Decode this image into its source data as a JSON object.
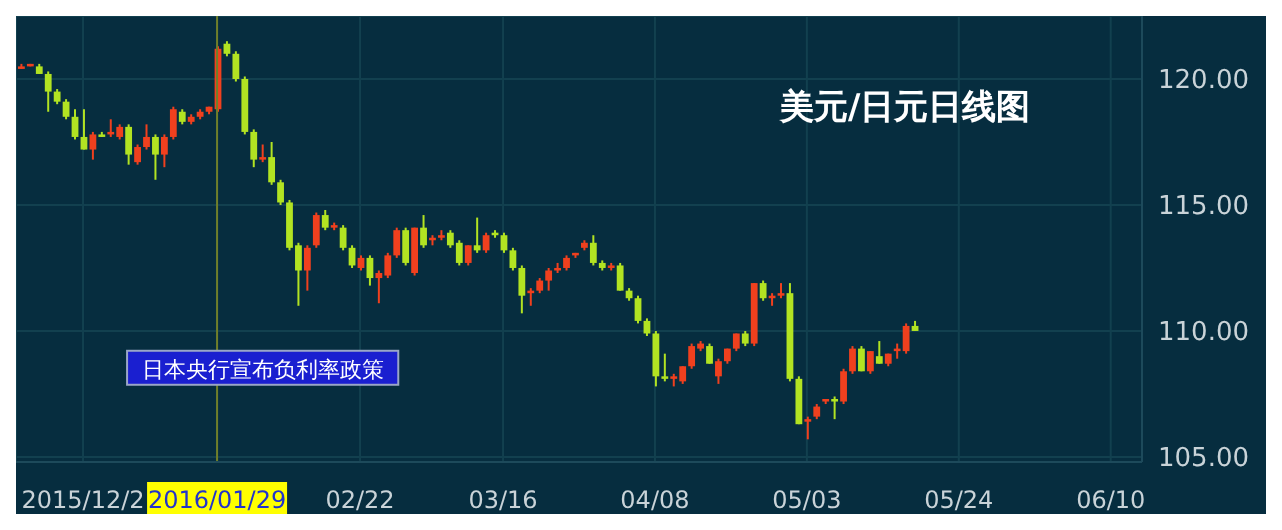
{
  "chart_data": {
    "type": "candlestick",
    "title": "美元/日元日线图",
    "categories": [
      null,
      null,
      null,
      null,
      null,
      null,
      null,
      "2015/12/2",
      null,
      null,
      null,
      null,
      null,
      null,
      null,
      null,
      null,
      null,
      null,
      null,
      null,
      null,
      "2016/01/29",
      null,
      null,
      null,
      null,
      null,
      null,
      null,
      null,
      null,
      null,
      null,
      null,
      null,
      null,
      null,
      "02/22",
      null,
      null,
      null,
      null,
      null,
      null,
      null,
      null,
      null,
      null,
      null,
      null,
      null,
      null,
      null,
      "03/16",
      null,
      null,
      null,
      null,
      null,
      null,
      null,
      null,
      null,
      null,
      null,
      null,
      null,
      null,
      null,
      null,
      "04/08",
      null,
      null,
      null,
      null,
      null,
      null,
      null,
      null,
      null,
      null,
      null,
      null,
      null,
      null,
      null,
      null,
      "05/03",
      null,
      null,
      null,
      null,
      null,
      null,
      null,
      null,
      null,
      null,
      null,
      null,
      null,
      null,
      null,
      null,
      "05/24",
      null,
      null,
      null,
      null,
      null,
      null,
      null,
      null,
      null,
      null,
      null,
      null,
      null,
      null,
      null,
      null,
      "06/10",
      null,
      null,
      null
    ],
    "ohlc": [
      [
        120.4,
        120.6,
        120.4,
        120.5
      ],
      [
        120.5,
        120.6,
        120.5,
        120.6
      ],
      [
        120.5,
        120.6,
        120.2,
        120.2
      ],
      [
        120.2,
        120.3,
        118.7,
        119.5
      ],
      [
        119.5,
        119.6,
        119.0,
        119.1
      ],
      [
        119.1,
        119.2,
        118.4,
        118.5
      ],
      [
        118.5,
        118.8,
        117.6,
        117.7
      ],
      [
        117.7,
        118.8,
        117.2,
        117.2
      ],
      [
        117.2,
        117.9,
        116.8,
        117.8
      ],
      [
        117.8,
        117.9,
        117.7,
        117.7
      ],
      [
        117.8,
        118.4,
        117.7,
        117.9
      ],
      [
        117.7,
        118.2,
        117.6,
        118.1
      ],
      [
        118.1,
        118.2,
        116.6,
        117.0
      ],
      [
        116.7,
        117.4,
        116.6,
        117.3
      ],
      [
        117.3,
        118.2,
        117.2,
        117.7
      ],
      [
        117.7,
        117.8,
        116.0,
        117.0
      ],
      [
        117.0,
        117.8,
        116.5,
        117.7
      ],
      [
        117.7,
        118.9,
        117.6,
        118.8
      ],
      [
        118.7,
        118.8,
        118.2,
        118.3
      ],
      [
        118.3,
        118.6,
        118.2,
        118.5
      ],
      [
        118.5,
        118.8,
        118.4,
        118.7
      ],
      [
        118.7,
        118.9,
        118.6,
        118.9
      ],
      [
        118.8,
        121.3,
        118.7,
        121.2
      ],
      [
        121.4,
        121.5,
        120.9,
        121.0
      ],
      [
        121.0,
        121.1,
        119.9,
        120.0
      ],
      [
        120.0,
        120.1,
        117.8,
        117.9
      ],
      [
        117.9,
        118.0,
        116.5,
        116.8
      ],
      [
        116.8,
        117.4,
        116.7,
        116.9
      ],
      [
        116.9,
        117.5,
        115.8,
        115.9
      ],
      [
        115.9,
        116.0,
        115.0,
        115.1
      ],
      [
        115.1,
        115.2,
        113.2,
        113.3
      ],
      [
        113.4,
        113.5,
        111.0,
        112.4
      ],
      [
        112.4,
        113.4,
        111.6,
        113.3
      ],
      [
        113.4,
        114.7,
        113.3,
        114.6
      ],
      [
        114.6,
        114.8,
        114.0,
        114.1
      ],
      [
        114.1,
        114.3,
        114.0,
        114.2
      ],
      [
        114.1,
        114.2,
        113.2,
        113.3
      ],
      [
        113.3,
        113.4,
        112.5,
        112.6
      ],
      [
        112.5,
        113.0,
        112.4,
        112.9
      ],
      [
        112.9,
        113.0,
        111.8,
        112.1
      ],
      [
        112.1,
        112.4,
        111.1,
        112.3
      ],
      [
        112.2,
        113.1,
        112.1,
        113.0
      ],
      [
        113.0,
        114.1,
        112.9,
        114.0
      ],
      [
        114.0,
        114.1,
        112.6,
        112.7
      ],
      [
        112.3,
        114.1,
        112.2,
        114.1
      ],
      [
        114.1,
        114.6,
        113.3,
        113.4
      ],
      [
        113.6,
        113.8,
        113.4,
        113.7
      ],
      [
        113.7,
        114.0,
        113.6,
        113.8
      ],
      [
        113.9,
        114.0,
        113.3,
        113.4
      ],
      [
        113.5,
        113.6,
        112.6,
        112.7
      ],
      [
        112.7,
        113.4,
        112.6,
        113.4
      ],
      [
        113.4,
        114.5,
        113.1,
        113.2
      ],
      [
        113.2,
        113.9,
        113.1,
        113.8
      ],
      [
        113.9,
        114.0,
        113.7,
        113.8
      ],
      [
        113.8,
        113.9,
        113.1,
        113.2
      ],
      [
        113.2,
        113.3,
        112.4,
        112.5
      ],
      [
        112.5,
        112.6,
        110.7,
        111.4
      ],
      [
        111.5,
        111.7,
        111.0,
        111.6
      ],
      [
        111.6,
        112.1,
        111.5,
        112.0
      ],
      [
        112.0,
        112.5,
        111.6,
        112.4
      ],
      [
        112.4,
        112.7,
        112.3,
        112.5
      ],
      [
        112.5,
        113.0,
        112.4,
        112.9
      ],
      [
        113.0,
        113.1,
        112.9,
        113.1
      ],
      [
        113.3,
        113.6,
        113.2,
        113.5
      ],
      [
        113.5,
        113.8,
        112.6,
        112.7
      ],
      [
        112.7,
        112.8,
        112.4,
        112.5
      ],
      [
        112.5,
        112.7,
        112.4,
        112.6
      ],
      [
        112.6,
        112.7,
        111.6,
        111.6
      ],
      [
        111.6,
        111.7,
        111.2,
        111.3
      ],
      [
        111.3,
        111.4,
        110.3,
        110.4
      ],
      [
        110.4,
        110.5,
        109.8,
        109.9
      ],
      [
        109.9,
        110.0,
        107.8,
        108.2
      ],
      [
        108.2,
        109.1,
        108.0,
        108.1
      ],
      [
        108.1,
        108.3,
        107.8,
        108.2
      ],
      [
        108.0,
        108.6,
        107.9,
        108.6
      ],
      [
        108.6,
        109.5,
        108.5,
        109.4
      ],
      [
        109.3,
        109.6,
        109.2,
        109.5
      ],
      [
        109.4,
        109.5,
        108.7,
        108.7
      ],
      [
        108.2,
        108.9,
        107.9,
        108.8
      ],
      [
        108.8,
        109.3,
        108.7,
        109.3
      ],
      [
        109.3,
        109.9,
        109.2,
        109.9
      ],
      [
        109.9,
        110.0,
        109.4,
        109.5
      ],
      [
        109.5,
        111.9,
        109.4,
        111.9
      ],
      [
        111.9,
        112.0,
        111.2,
        111.3
      ],
      [
        111.3,
        111.5,
        111.0,
        111.4
      ],
      [
        111.4,
        111.9,
        111.3,
        111.5
      ],
      [
        111.5,
        111.9,
        108.0,
        108.1
      ],
      [
        108.1,
        108.2,
        106.3,
        106.3
      ],
      [
        106.4,
        106.6,
        105.7,
        106.5
      ],
      [
        106.6,
        107.1,
        106.5,
        107.0
      ],
      [
        107.2,
        107.3,
        107.1,
        107.3
      ],
      [
        107.3,
        107.4,
        106.5,
        107.2
      ],
      [
        107.2,
        108.5,
        107.1,
        108.4
      ],
      [
        108.4,
        109.4,
        108.3,
        109.3
      ],
      [
        109.3,
        109.4,
        108.4,
        108.4
      ],
      [
        108.4,
        109.2,
        108.3,
        109.2
      ],
      [
        109.0,
        109.6,
        108.7,
        108.7
      ],
      [
        108.7,
        109.1,
        108.6,
        109.1
      ],
      [
        109.2,
        109.5,
        108.9,
        109.3
      ],
      [
        109.2,
        110.3,
        109.1,
        110.2
      ],
      [
        110.2,
        110.4,
        110.0,
        110.0
      ],
      null,
      null,
      null,
      null,
      null,
      null,
      null,
      null,
      null,
      null,
      null,
      null,
      null,
      null,
      null,
      null,
      null,
      null,
      null,
      null,
      null,
      null,
      null,
      null,
      null
    ],
    "colors": [
      "#f0401e",
      "#f0401e",
      "#b2e322",
      "#b2e322",
      "#b2e322",
      "#b2e322",
      "#b2e322",
      "#b2e322",
      "#f0401e",
      "#b2e322",
      "#f0401e",
      "#f0401e",
      "#b2e322",
      "#f0401e",
      "#f0401e",
      "#b2e322",
      "#f0401e",
      "#f0401e",
      "#b2e322",
      "#f0401e",
      "#f0401e",
      "#f0401e",
      "#f0401e",
      "#b2e322",
      "#b2e322",
      "#b2e322",
      "#b2e322",
      "#f0401e",
      "#b2e322",
      "#b2e322",
      "#b2e322",
      "#b2e322",
      "#f0401e",
      "#f0401e",
      "#b2e322",
      "#f0401e",
      "#b2e322",
      "#b2e322",
      "#f0401e",
      "#b2e322",
      "#f0401e",
      "#f0401e",
      "#f0401e",
      "#b2e322",
      "#f0401e",
      "#b2e322",
      "#f0401e",
      "#f0401e",
      "#b2e322",
      "#b2e322",
      "#f0401e",
      "#b2e322",
      "#f0401e",
      "#b2e322",
      "#b2e322",
      "#b2e322",
      "#b2e322",
      "#f0401e",
      "#f0401e",
      "#f0401e",
      "#f0401e",
      "#f0401e",
      "#f0401e",
      "#f0401e",
      "#b2e322",
      "#b2e322",
      "#f0401e",
      "#b2e322",
      "#b2e322",
      "#b2e322",
      "#b2e322",
      "#b2e322",
      "#b2e322",
      "#f0401e",
      "#f0401e",
      "#f0401e",
      "#f0401e",
      "#b2e322",
      "#f0401e",
      "#f0401e",
      "#f0401e",
      "#b2e322",
      "#f0401e",
      "#b2e322",
      "#f0401e",
      "#f0401e",
      "#b2e322",
      "#b2e322",
      "#f0401e",
      "#f0401e",
      "#f0401e",
      "#b2e322",
      "#f0401e",
      "#f0401e",
      "#b2e322",
      "#f0401e",
      "#b2e322",
      "#f0401e",
      "#f0401e",
      "#f0401e",
      "#b2e322",
      null,
      null,
      null,
      null,
      null,
      null,
      null,
      null,
      null,
      null,
      null,
      null,
      null,
      null,
      null,
      null,
      null,
      null,
      null,
      null,
      null,
      null,
      null,
      null,
      null
    ],
    "ylim": [
      104.8,
      122.5
    ],
    "yticks": [
      {
        "value": 105,
        "label": "105.00"
      },
      {
        "value": 110,
        "label": "110.00"
      },
      {
        "value": 115,
        "label": "115.00"
      },
      {
        "value": 120,
        "label": "120.00"
      }
    ],
    "grid": true,
    "ref_lines": [
      {
        "axis": "x",
        "value": "2016/01/29",
        "color": "#6f7f2a"
      }
    ],
    "annotations": [
      {
        "text": "日本央行宣布负利率政策",
        "x": "2016/01/29",
        "y": 108.5
      }
    ]
  }
}
